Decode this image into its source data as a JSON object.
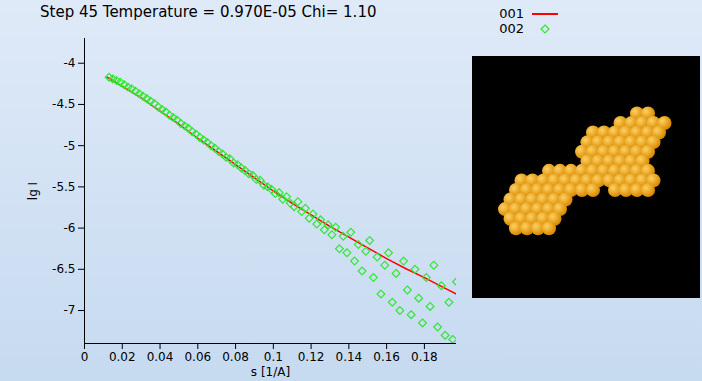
{
  "chart_data": {
    "type": "scatter",
    "title": "Step 45 Temperature = 0.970E-05 Chi= 1.10",
    "x_label": "s [1/A]",
    "y_label": "lg I",
    "xlim": [
      0,
      0.197
    ],
    "ylim": [
      -7.4,
      -3.7
    ],
    "xticks": [
      0,
      0.02,
      0.04,
      0.06,
      0.08,
      0.1,
      0.12,
      0.14,
      0.16,
      0.18
    ],
    "yticks": [
      -7,
      -6.5,
      -6,
      -5.5,
      -5,
      -4.5,
      -4
    ],
    "legend": "top-right",
    "series": [
      {
        "name": "001",
        "color": "#ff0000",
        "type": "line",
        "line_style": "solid",
        "x": [
          0.012,
          0.02,
          0.03,
          0.04,
          0.05,
          0.06,
          0.07,
          0.08,
          0.09,
          0.1,
          0.11,
          0.12,
          0.13,
          0.14,
          0.15,
          0.16,
          0.17,
          0.18,
          0.19,
          0.197
        ],
        "values": [
          -4.17,
          -4.28,
          -4.42,
          -4.58,
          -4.74,
          -4.91,
          -5.07,
          -5.23,
          -5.39,
          -5.55,
          -5.7,
          -5.84,
          -5.98,
          -6.11,
          -6.24,
          -6.37,
          -6.49,
          -6.6,
          -6.72,
          -6.8
        ]
      },
      {
        "name": "002",
        "color": "#33e633",
        "type": "scatter",
        "marker": "diamond",
        "x": [
          0.013,
          0.015,
          0.017,
          0.019,
          0.021,
          0.023,
          0.025,
          0.027,
          0.029,
          0.031,
          0.033,
          0.035,
          0.037,
          0.039,
          0.041,
          0.043,
          0.045,
          0.047,
          0.049,
          0.051,
          0.053,
          0.055,
          0.057,
          0.059,
          0.061,
          0.063,
          0.065,
          0.067,
          0.069,
          0.071,
          0.073,
          0.075,
          0.077,
          0.079,
          0.081,
          0.083,
          0.085,
          0.087,
          0.089,
          0.091,
          0.093,
          0.095,
          0.097,
          0.099,
          0.101,
          0.103,
          0.105,
          0.107,
          0.109,
          0.111,
          0.113,
          0.115,
          0.117,
          0.119,
          0.121,
          0.123,
          0.125,
          0.127,
          0.129,
          0.131,
          0.133,
          0.135,
          0.137,
          0.139,
          0.141,
          0.143,
          0.145,
          0.147,
          0.149,
          0.151,
          0.153,
          0.155,
          0.157,
          0.159,
          0.161,
          0.163,
          0.165,
          0.167,
          0.169,
          0.171,
          0.173,
          0.175,
          0.177,
          0.179,
          0.181,
          0.183,
          0.185,
          0.187,
          0.189,
          0.191,
          0.193,
          0.195,
          0.197
        ],
        "values": [
          -4.17,
          -4.19,
          -4.21,
          -4.23,
          -4.26,
          -4.29,
          -4.31,
          -4.34,
          -4.37,
          -4.4,
          -4.43,
          -4.46,
          -4.49,
          -4.53,
          -4.56,
          -4.59,
          -4.63,
          -4.66,
          -4.69,
          -4.73,
          -4.76,
          -4.79,
          -4.83,
          -4.86,
          -4.9,
          -4.93,
          -4.96,
          -5.0,
          -5.03,
          -5.07,
          -5.1,
          -5.14,
          -5.16,
          -5.21,
          -5.23,
          -5.27,
          -5.3,
          -5.34,
          -5.36,
          -5.41,
          -5.42,
          -5.48,
          -5.5,
          -5.53,
          -5.58,
          -5.57,
          -5.65,
          -5.62,
          -5.7,
          -5.74,
          -5.68,
          -5.8,
          -5.76,
          -5.88,
          -5.83,
          -5.95,
          -5.9,
          -6.02,
          -5.96,
          -6.08,
          -5.99,
          -6.25,
          -6.1,
          -6.3,
          -6.05,
          -6.4,
          -6.2,
          -6.52,
          -6.28,
          -6.15,
          -6.6,
          -6.35,
          -6.8,
          -6.45,
          -6.3,
          -6.9,
          -6.55,
          -7.0,
          -6.4,
          -6.75,
          -7.05,
          -6.5,
          -6.85,
          -7.15,
          -6.6,
          -6.95,
          -6.45,
          -7.2,
          -6.7,
          -7.3,
          -6.9,
          -7.35,
          -6.65
        ]
      }
    ]
  }
}
